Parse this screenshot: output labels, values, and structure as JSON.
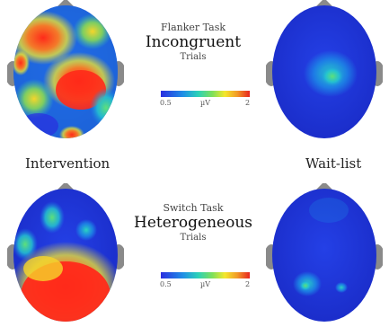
{
  "groups": {
    "left": "Intervention",
    "right": "Wait-list"
  },
  "panels": [
    {
      "task": "Flanker Task",
      "condition": "Incongruent",
      "trials": "Trials",
      "colorbar": {
        "min": "0.5",
        "unit": "µV",
        "max": "2"
      }
    },
    {
      "task": "Switch Task",
      "condition": "Heterogeneous",
      "trials": "Trials",
      "colorbar": {
        "min": "0.5",
        "unit": "µV",
        "max": "2"
      }
    }
  ],
  "colors": {
    "low": "#2a2ee0",
    "mid": "#7ee05a",
    "high": "#e8241f",
    "ear": "#8a8a8a"
  }
}
